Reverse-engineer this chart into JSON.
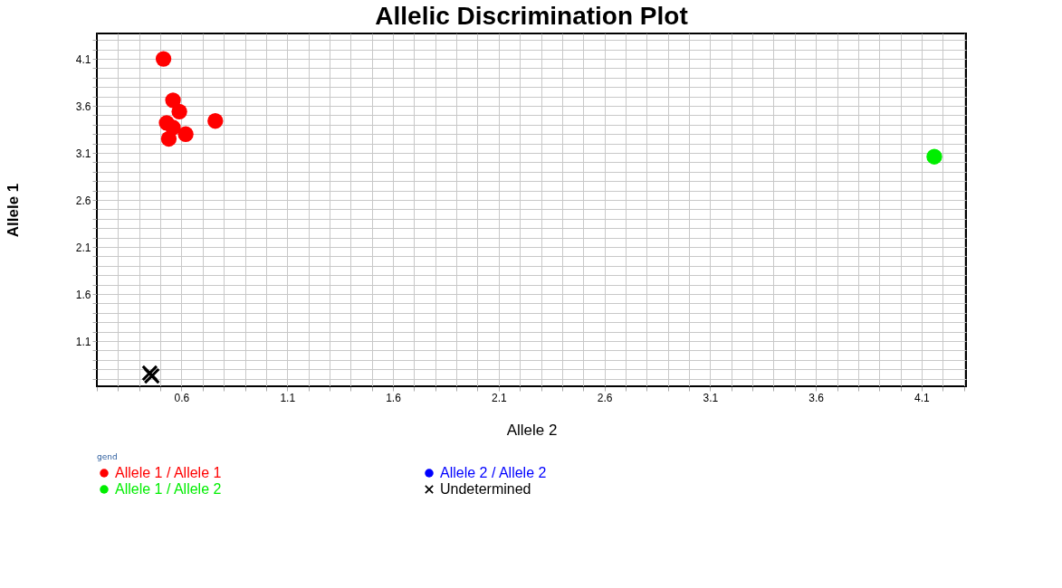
{
  "chart_data": {
    "type": "scatter",
    "title": "Allelic Discrimination Plot",
    "xlabel": "Allele 2",
    "ylabel": "Allele 1",
    "legend_title": "gend",
    "legend": "bottom",
    "grid": true,
    "xlim": [
      0.2,
      4.31
    ],
    "ylim": [
      0.62,
      4.37
    ],
    "xticks": [
      {
        "value": 0.2,
        "label": null
      },
      {
        "value": 0.3,
        "label": null
      },
      {
        "value": 0.4,
        "label": null
      },
      {
        "value": 0.5,
        "label": null
      },
      0.6,
      {
        "value": 0.7,
        "label": null
      },
      {
        "value": 0.8,
        "label": null
      },
      {
        "value": 0.9,
        "label": null
      },
      {
        "value": 1.0,
        "label": null
      },
      1.1,
      {
        "value": 1.2,
        "label": null
      },
      {
        "value": 1.3,
        "label": null
      },
      {
        "value": 1.4,
        "label": null
      },
      {
        "value": 1.5,
        "label": null
      },
      1.6,
      {
        "value": 1.7,
        "label": null
      },
      {
        "value": 1.8,
        "label": null
      },
      {
        "value": 1.9,
        "label": null
      },
      {
        "value": 2.0,
        "label": null
      },
      2.1,
      {
        "value": 2.2,
        "label": null
      },
      {
        "value": 2.3,
        "label": null
      },
      {
        "value": 2.4,
        "label": null
      },
      {
        "value": 2.5,
        "label": null
      },
      2.6,
      {
        "value": 2.7,
        "label": null
      },
      {
        "value": 2.8,
        "label": null
      },
      {
        "value": 2.9,
        "label": null
      },
      {
        "value": 3.0,
        "label": null
      },
      3.1,
      {
        "value": 3.2,
        "label": null
      },
      {
        "value": 3.3,
        "label": null
      },
      {
        "value": 3.4,
        "label": null
      },
      {
        "value": 3.5,
        "label": null
      },
      3.6,
      {
        "value": 3.7,
        "label": null
      },
      {
        "value": 3.8,
        "label": null
      },
      {
        "value": 3.9,
        "label": null
      },
      {
        "value": 4.0,
        "label": null
      },
      4.1,
      {
        "value": 4.2,
        "label": null
      },
      {
        "value": 4.3,
        "label": null
      }
    ],
    "yticks": [
      {
        "value": 0.7,
        "label": null
      },
      {
        "value": 0.8,
        "label": null
      },
      {
        "value": 0.9,
        "label": null
      },
      {
        "value": 1.0,
        "label": null
      },
      1.1,
      {
        "value": 1.2,
        "label": null
      },
      {
        "value": 1.3,
        "label": null
      },
      {
        "value": 1.4,
        "label": null
      },
      {
        "value": 1.5,
        "label": null
      },
      1.6,
      {
        "value": 1.7,
        "label": null
      },
      {
        "value": 1.8,
        "label": null
      },
      {
        "value": 1.9,
        "label": null
      },
      {
        "value": 2.0,
        "label": null
      },
      2.1,
      {
        "value": 2.2,
        "label": null
      },
      {
        "value": 2.3,
        "label": null
      },
      {
        "value": 2.4,
        "label": null
      },
      {
        "value": 2.5,
        "label": null
      },
      2.6,
      {
        "value": 2.7,
        "label": null
      },
      {
        "value": 2.8,
        "label": null
      },
      {
        "value": 2.9,
        "label": null
      },
      {
        "value": 3.0,
        "label": null
      },
      3.1,
      {
        "value": 3.2,
        "label": null
      },
      {
        "value": 3.3,
        "label": null
      },
      {
        "value": 3.4,
        "label": null
      },
      {
        "value": 3.5,
        "label": null
      },
      3.6,
      {
        "value": 3.7,
        "label": null
      },
      {
        "value": 3.8,
        "label": null
      },
      {
        "value": 3.9,
        "label": null
      },
      {
        "value": 4.0,
        "label": null
      },
      4.1,
      {
        "value": 4.2,
        "label": null
      },
      {
        "value": 4.3,
        "label": null
      }
    ],
    "series": [
      {
        "name": "Allele 1 / Allele 1",
        "color": "#ff0000",
        "marker": "circle",
        "x": [
          0.515,
          0.56,
          0.59,
          0.53,
          0.55,
          0.62,
          0.76,
          0.54,
          0.56
        ],
        "values": [
          4.1,
          3.66,
          3.54,
          3.42,
          null,
          3.3,
          3.44,
          3.25,
          3.37
        ]
      },
      {
        "name": "Allele 2 / Allele 2",
        "color": "#0000ff",
        "marker": "circle"
      },
      {
        "name": "Allele 1 / Allele 2",
        "color": "#00ee00",
        "marker": "circle",
        "x": [
          4.16
        ],
        "values": [
          3.06
        ]
      },
      {
        "name": "Undetermined",
        "color": "#000000",
        "marker": "cross",
        "x": [
          0.45,
          0.46
        ],
        "values": [
          0.76,
          0.73
        ]
      }
    ]
  }
}
